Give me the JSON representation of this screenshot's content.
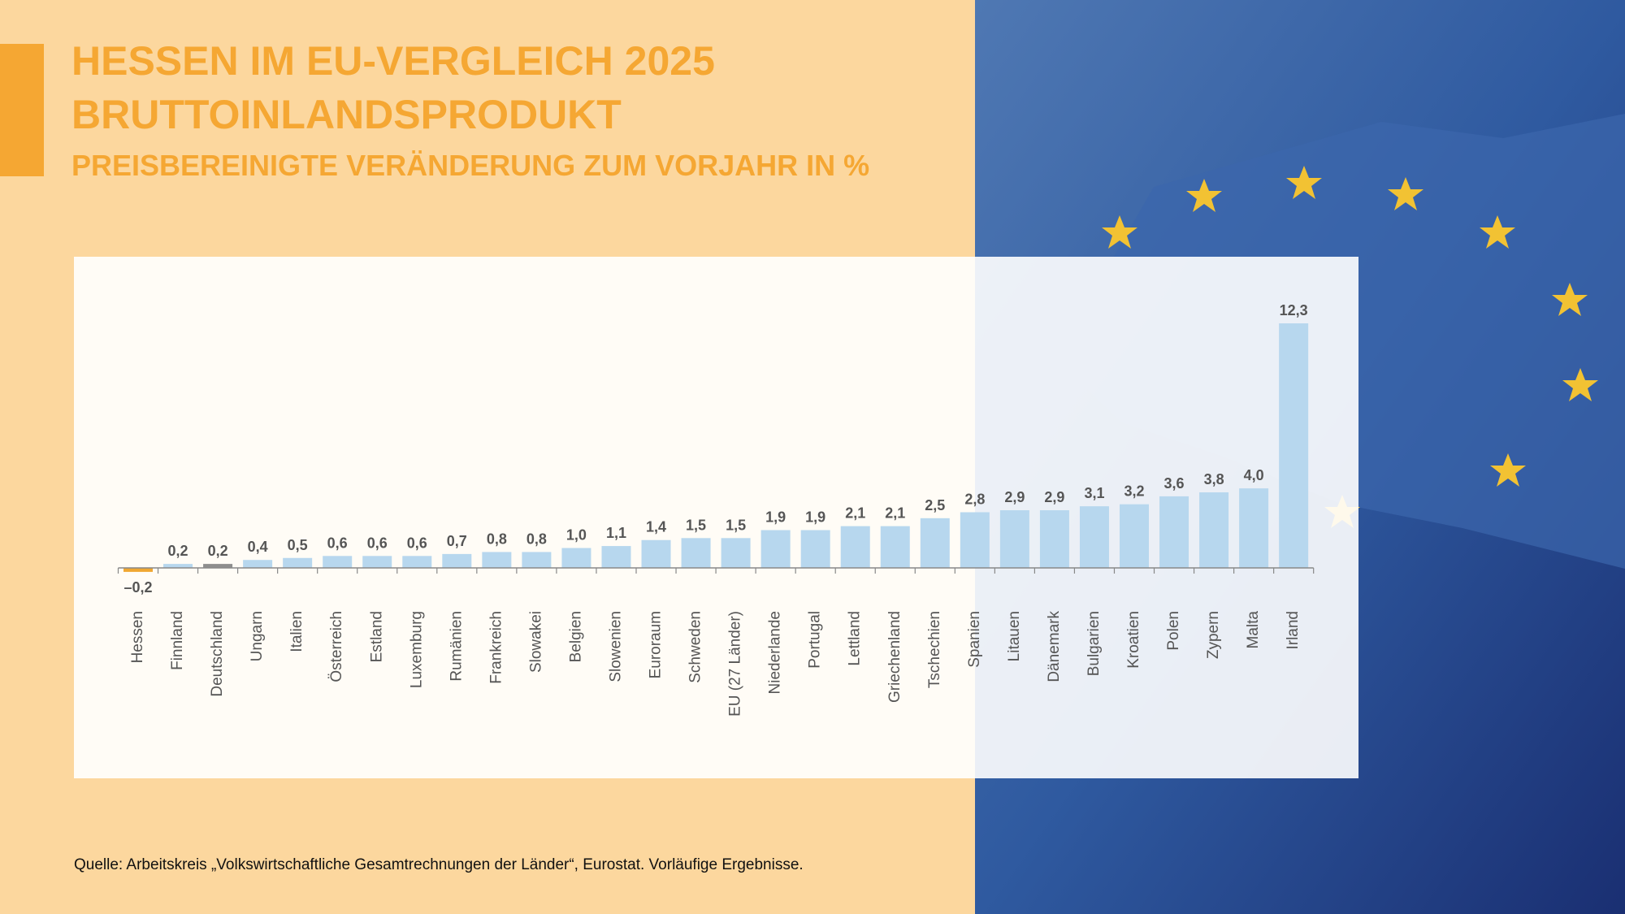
{
  "chart_data": {
    "type": "bar",
    "title": "HESSEN IM EU-VERGLEICH 2025",
    "subtitle": "BRUTTOINLANDSPRODUKT",
    "description": "PREISBEREINIGTE VERÄNDERUNG ZUM VORJAHR IN %",
    "source": "Quelle: Arbeitskreis „Volkswirtschaftliche Gesamtrechnungen der Länder“, Eurostat. Vorläufige Ergebnisse.",
    "categories": [
      "Hessen",
      "Finnland",
      "Deutschland",
      "Ungarn",
      "Italien",
      "Österreich",
      "Estland",
      "Luxemburg",
      "Rumänien",
      "Frankreich",
      "Slowakei",
      "Belgien",
      "Slowenien",
      "Euroraum",
      "Schweden",
      "EU (27 Länder)",
      "Niederlande",
      "Portugal",
      "Lettland",
      "Griechenland",
      "Tschechien",
      "Spanien",
      "Litauen",
      "Dänemark",
      "Bulgarien",
      "Kroatien",
      "Polen",
      "Zypern",
      "Malta",
      "Irland"
    ],
    "values": [
      -0.2,
      0.2,
      0.2,
      0.4,
      0.5,
      0.6,
      0.6,
      0.6,
      0.7,
      0.8,
      0.8,
      1.0,
      1.1,
      1.4,
      1.5,
      1.5,
      1.9,
      1.9,
      2.1,
      2.1,
      2.5,
      2.8,
      2.9,
      2.9,
      3.1,
      3.2,
      3.6,
      3.8,
      4.0,
      12.3
    ],
    "value_labels": [
      "–0,2",
      "0,2",
      "0,2",
      "0,4",
      "0,5",
      "0,6",
      "0,6",
      "0,6",
      "0,7",
      "0,8",
      "0,8",
      "1,0",
      "1,1",
      "1,4",
      "1,5",
      "1,5",
      "1,9",
      "1,9",
      "2,1",
      "2,1",
      "2,5",
      "2,8",
      "2,9",
      "2,9",
      "3,1",
      "3,2",
      "3,6",
      "3,8",
      "4,0",
      "12,3"
    ],
    "colors": [
      "#f0a732",
      "#b7d7ee",
      "#8e8e8e",
      "#b7d7ee",
      "#b7d7ee",
      "#b7d7ee",
      "#b7d7ee",
      "#b7d7ee",
      "#b7d7ee",
      "#b7d7ee",
      "#b7d7ee",
      "#b7d7ee",
      "#b7d7ee",
      "#b7d7ee",
      "#b7d7ee",
      "#b7d7ee",
      "#b7d7ee",
      "#b7d7ee",
      "#b7d7ee",
      "#b7d7ee",
      "#b7d7ee",
      "#b7d7ee",
      "#b7d7ee",
      "#b7d7ee",
      "#b7d7ee",
      "#b7d7ee",
      "#b7d7ee",
      "#b7d7ee",
      "#b7d7ee",
      "#b7d7ee"
    ]
  }
}
